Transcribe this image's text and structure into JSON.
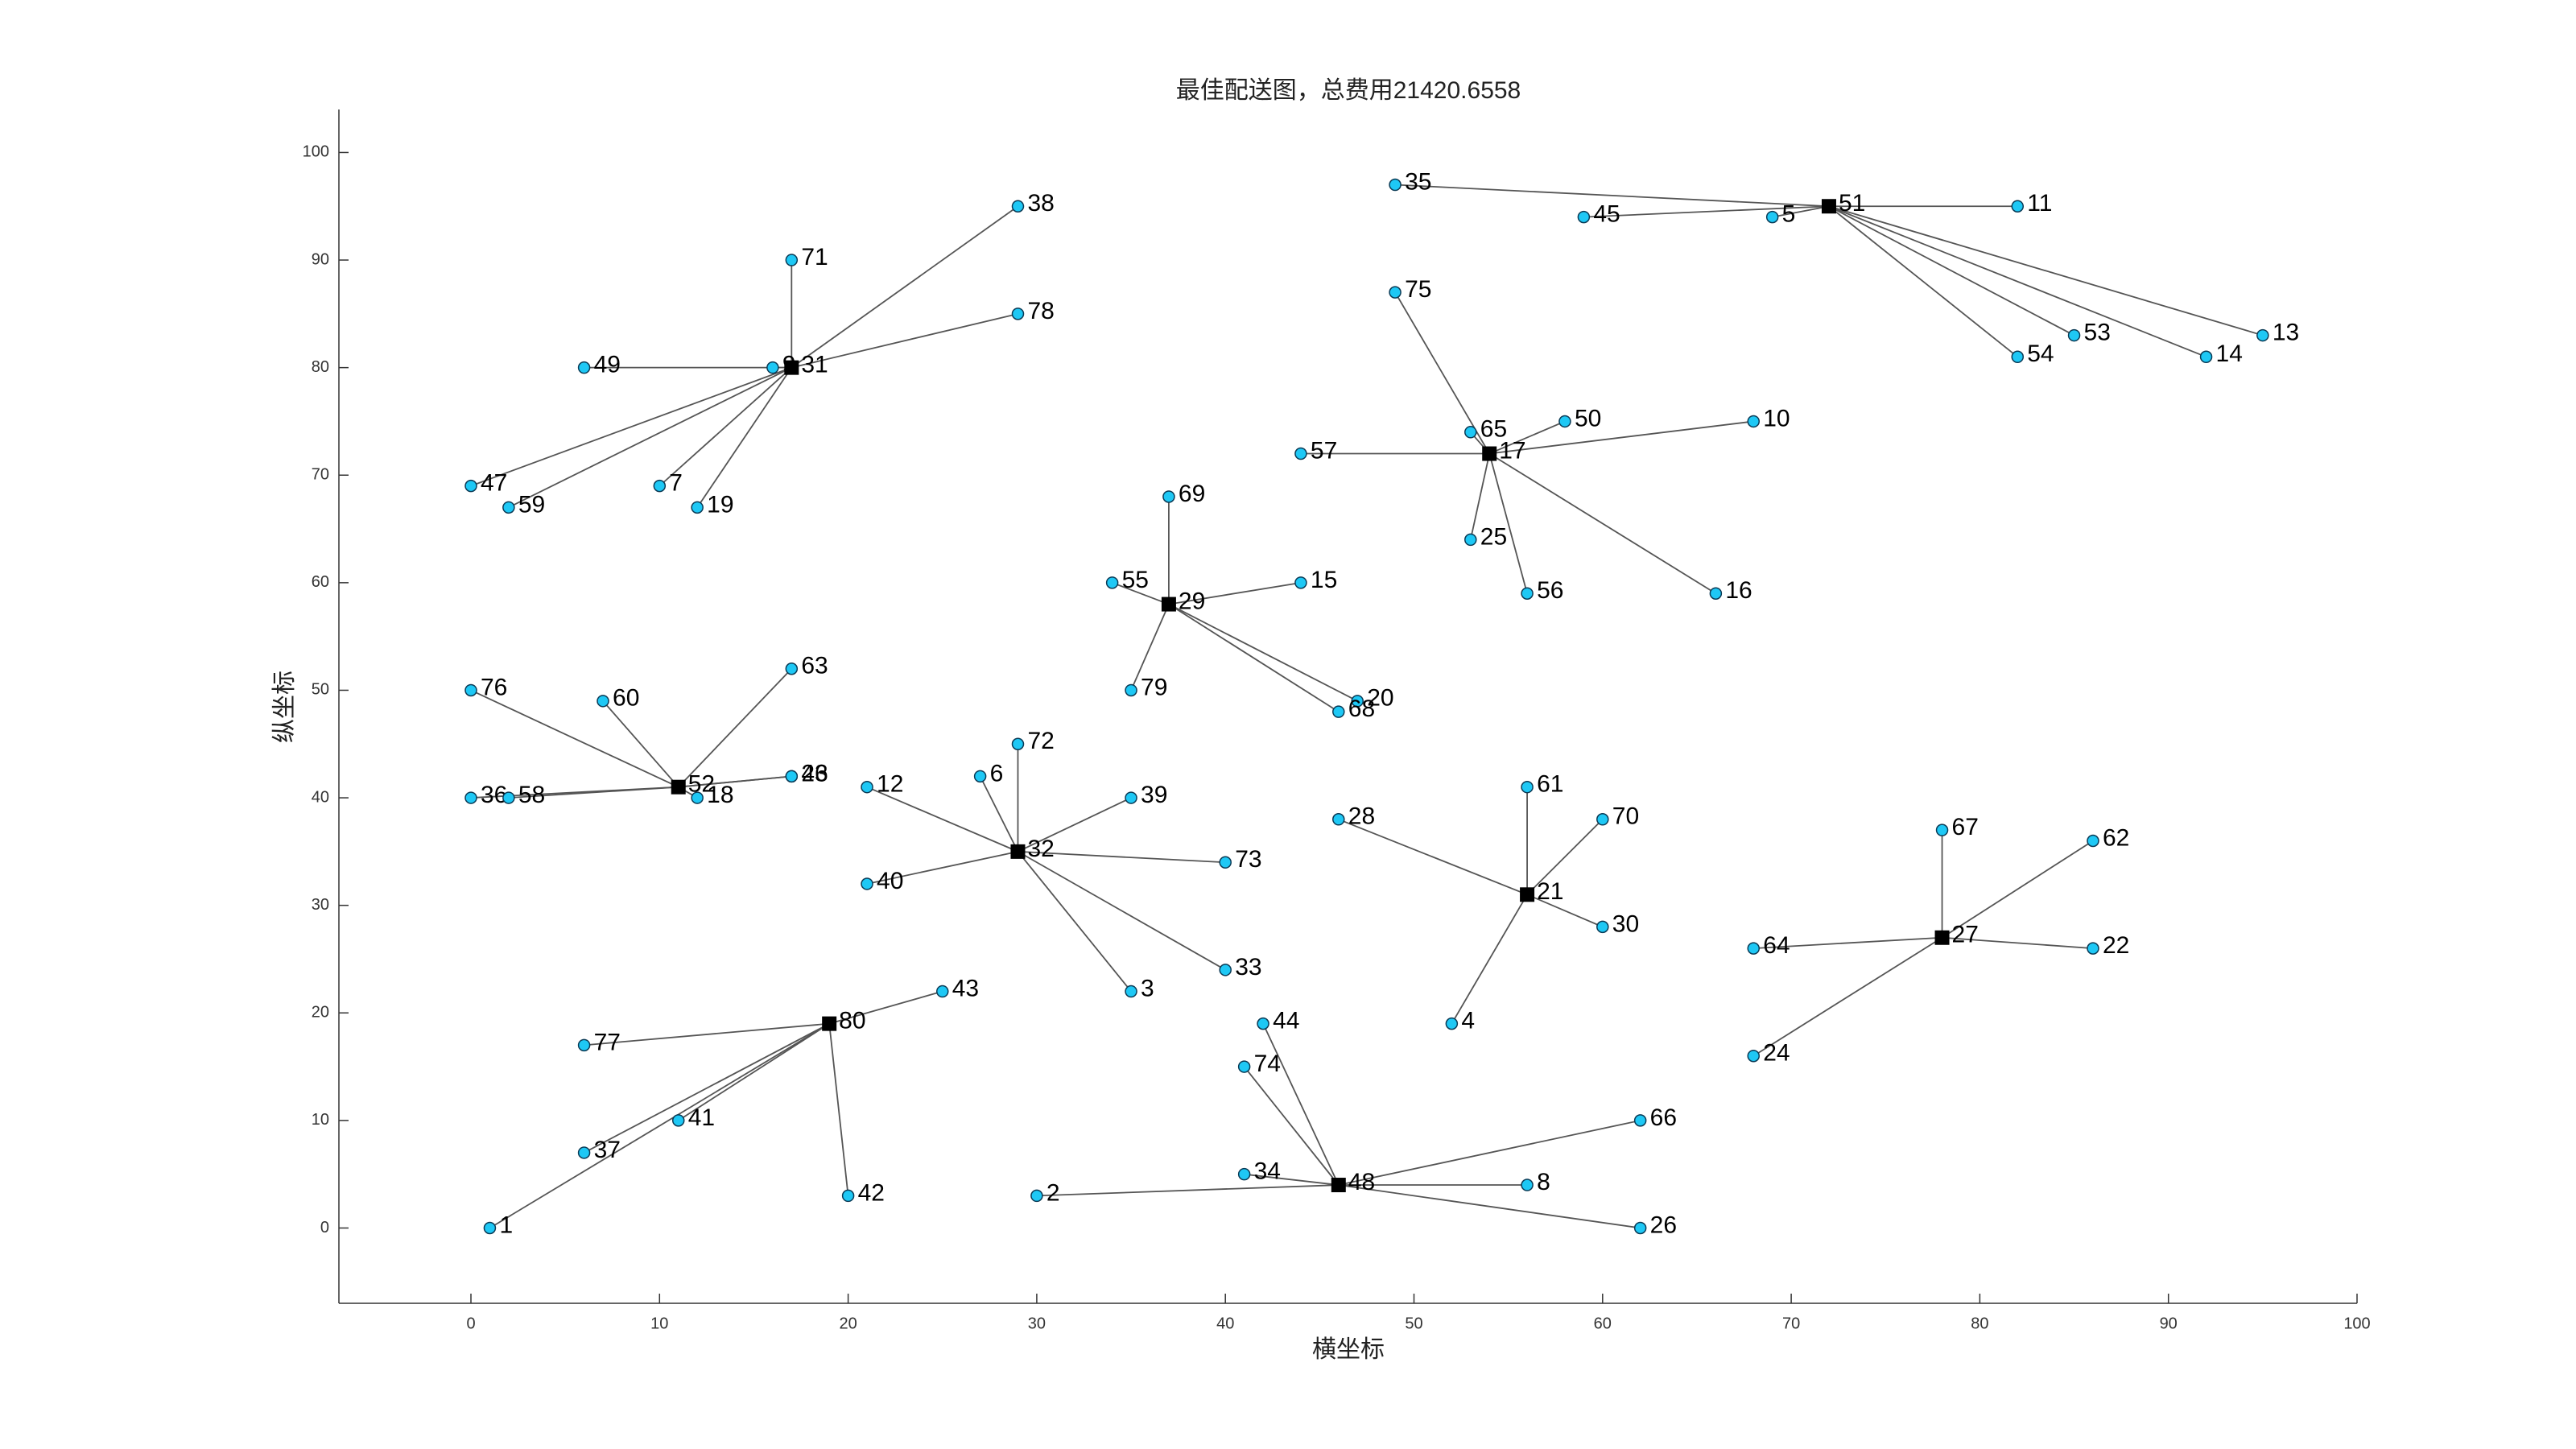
{
  "chart_data": {
    "type": "scatter",
    "title": "最佳配送图，总费用21420.6558",
    "xlabel": "横坐标",
    "ylabel": "纵坐标",
    "xlim": [
      -7,
      100
    ],
    "ylim": [
      -7,
      104
    ],
    "xticks": [
      0,
      10,
      20,
      30,
      40,
      50,
      60,
      70,
      80,
      90,
      100
    ],
    "yticks": [
      0,
      10,
      20,
      30,
      40,
      50,
      60,
      70,
      80,
      90,
      100
    ],
    "customer_color": "#1ec8f5",
    "depot_color": "#000000",
    "line_color": "#555555",
    "groups": [
      {
        "depot": {
          "label": "31",
          "x": 17,
          "y": 80
        },
        "customers": {
          "labels": [
            "71",
            "38",
            "78",
            "49",
            "9",
            "47",
            "59",
            "7",
            "19"
          ],
          "x": [
            17,
            29,
            29,
            6,
            16,
            0,
            2,
            10,
            12
          ],
          "y": [
            90,
            95,
            85,
            80,
            80,
            69,
            67,
            69,
            67
          ]
        }
      },
      {
        "depot": {
          "label": "51",
          "x": 72,
          "y": 95
        },
        "customers": {
          "labels": [
            "35",
            "45",
            "5",
            "11",
            "54",
            "53",
            "14",
            "13"
          ],
          "x": [
            49,
            59,
            69,
            82,
            82,
            85,
            92,
            95
          ],
          "y": [
            97,
            94,
            94,
            95,
            81,
            83,
            81,
            83
          ]
        }
      },
      {
        "depot": {
          "label": "17",
          "x": 54,
          "y": 72
        },
        "customers": {
          "labels": [
            "75",
            "65",
            "50",
            "10",
            "57",
            "25",
            "56",
            "16"
          ],
          "x": [
            49,
            53,
            58,
            68,
            44,
            53,
            56,
            66
          ],
          "y": [
            87,
            74,
            75,
            75,
            72,
            64,
            59,
            59
          ]
        }
      },
      {
        "depot": {
          "label": "29",
          "x": 37,
          "y": 58
        },
        "customers": {
          "labels": [
            "69",
            "55",
            "15",
            "79",
            "20",
            "68"
          ],
          "x": [
            37,
            34,
            44,
            35,
            47,
            46
          ],
          "y": [
            68,
            60,
            60,
            50,
            49,
            48
          ]
        }
      },
      {
        "depot": {
          "label": "52",
          "x": 11,
          "y": 41
        },
        "customers": {
          "labels": [
            "76",
            "60",
            "63",
            "46",
            "23",
            "36",
            "58",
            "18"
          ],
          "x": [
            0,
            7,
            17,
            17,
            17,
            0,
            2,
            12
          ],
          "y": [
            50,
            49,
            52,
            42,
            42,
            40,
            40,
            40
          ]
        }
      },
      {
        "depot": {
          "label": "32",
          "x": 29,
          "y": 35
        },
        "customers": {
          "labels": [
            "72",
            "6",
            "12",
            "39",
            "40",
            "73",
            "33",
            "3"
          ],
          "x": [
            29,
            27,
            21,
            35,
            21,
            40,
            40,
            35
          ],
          "y": [
            45,
            42,
            41,
            40,
            32,
            34,
            24,
            22
          ]
        }
      },
      {
        "depot": {
          "label": "21",
          "x": 56,
          "y": 31
        },
        "customers": {
          "labels": [
            "61",
            "70",
            "28",
            "30",
            "4"
          ],
          "x": [
            56,
            60,
            46,
            60,
            52
          ],
          "y": [
            41,
            38,
            38,
            28,
            19
          ]
        }
      },
      {
        "depot": {
          "label": "27",
          "x": 78,
          "y": 27
        },
        "customers": {
          "labels": [
            "67",
            "62",
            "64",
            "22",
            "24"
          ],
          "x": [
            78,
            86,
            68,
            86,
            68
          ],
          "y": [
            37,
            36,
            26,
            26,
            16
          ]
        }
      },
      {
        "depot": {
          "label": "80",
          "x": 19,
          "y": 19
        },
        "customers": {
          "labels": [
            "43",
            "77",
            "41",
            "37",
            "1",
            "42"
          ],
          "x": [
            25,
            6,
            11,
            6,
            1,
            20
          ],
          "y": [
            22,
            17,
            10,
            7,
            0,
            3
          ]
        }
      },
      {
        "depot": {
          "label": "48",
          "x": 46,
          "y": 4
        },
        "customers": {
          "labels": [
            "44",
            "74",
            "34",
            "2",
            "66",
            "8",
            "26"
          ],
          "x": [
            42,
            41,
            41,
            30,
            62,
            56,
            62
          ],
          "y": [
            19,
            15,
            5,
            3,
            10,
            4,
            0
          ]
        }
      }
    ]
  }
}
